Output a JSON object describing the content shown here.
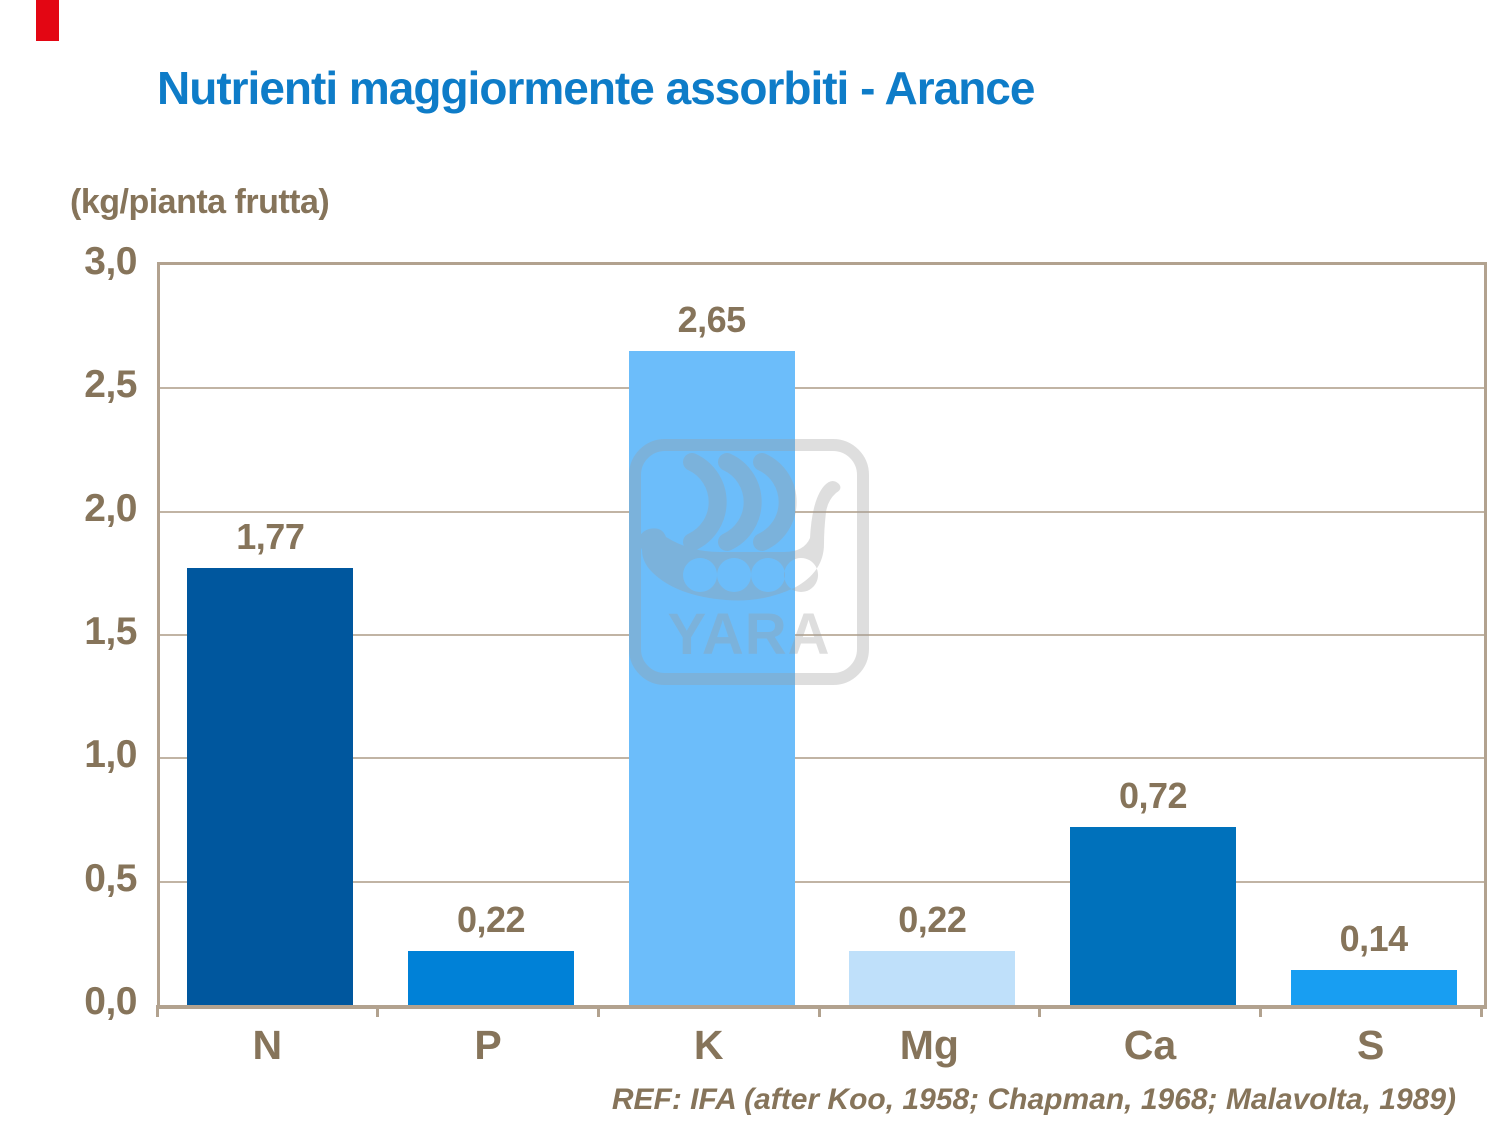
{
  "slide": {
    "background_color": "#ffffff",
    "accent_color": "#E30613"
  },
  "title": {
    "text": "Nutrienti maggiormente assorbiti - Arance",
    "color": "#0E7CC8"
  },
  "chart_data": {
    "type": "bar",
    "title": "Nutrienti maggiormente assorbiti - Arance",
    "unit_label": "(kg/pianta frutta)",
    "categories": [
      "N",
      "P",
      "K",
      "Mg",
      "Ca",
      "S"
    ],
    "values": [
      1.77,
      0.22,
      2.65,
      0.22,
      0.72,
      0.14
    ],
    "value_labels": [
      "1,77",
      "0,22",
      "2,65",
      "0,22",
      "0,72",
      "0,14"
    ],
    "bar_colors": [
      "#00579E",
      "#0081D7",
      "#6CBDFA",
      "#BFE0FA",
      "#0071BB",
      "#189EF2"
    ],
    "ylim": [
      0,
      3.0
    ],
    "ytick_labels": [
      "3,0",
      "2,5",
      "2,0",
      "1,5",
      "1,0",
      "0,5",
      "0,0"
    ],
    "grid": true,
    "legend": "none",
    "text_color": "#86745A",
    "axis_color": "#B2A28F",
    "gridline_color": "#C1B4A4"
  },
  "watermark": {
    "name": "yara-logo",
    "text": "YARA",
    "color": "#9C9C9C"
  },
  "footer": {
    "reference": "REF: IFA (after Koo, 1958; Chapman, 1968; Malavolta, 1989)"
  }
}
